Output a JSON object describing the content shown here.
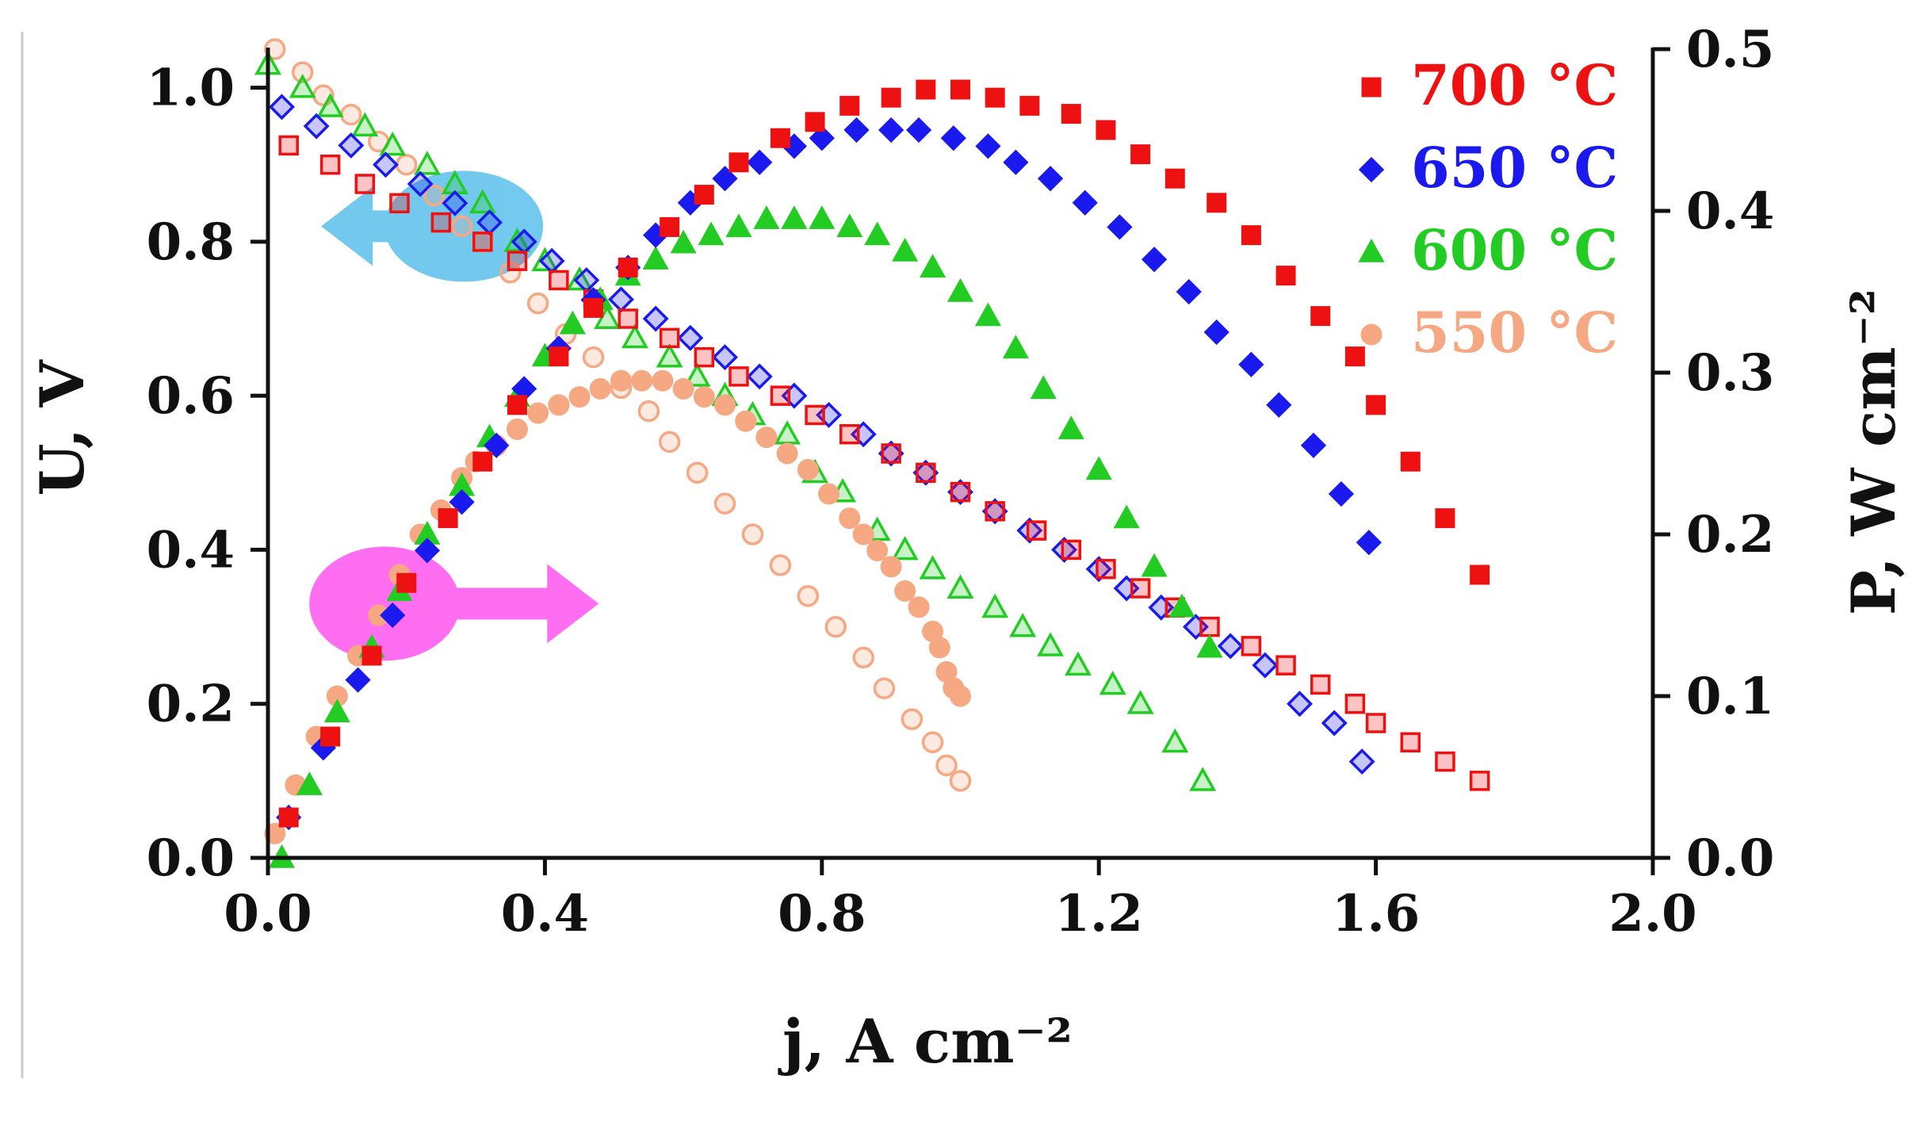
{
  "chart_data": {
    "type": "scatter",
    "title": "",
    "xlabel": "j, A cm⁻²",
    "ylabel_left": "U, V",
    "ylabel_right": "P, W cm⁻²",
    "xlim": [
      0,
      2.0
    ],
    "ylim_left": [
      0,
      1.05
    ],
    "ylim_right": [
      0,
      0.5
    ],
    "x_ticks": [
      "0.0",
      "0.4",
      "0.8",
      "1.2",
      "1.6",
      "2.0"
    ],
    "x_tick_values": [
      0,
      0.4,
      0.8,
      1.2,
      1.6,
      2.0
    ],
    "y_left_ticks": [
      "0.0",
      "0.2",
      "0.4",
      "0.6",
      "0.8",
      "1.0"
    ],
    "y_left_tick_values": [
      0,
      0.2,
      0.4,
      0.6,
      0.8,
      1.0
    ],
    "y_right_ticks": [
      "0.0",
      "0.1",
      "0.2",
      "0.3",
      "0.4",
      "0.5"
    ],
    "y_right_tick_values": [
      0,
      0.1,
      0.2,
      0.3,
      0.4,
      0.5
    ],
    "legend_position": "top-right",
    "annotations": [
      {
        "name": "voltage-axis-arrow",
        "points_to": "left axis",
        "color": "#5bc0eb",
        "x": 0.26,
        "y_left": 0.82
      },
      {
        "name": "power-axis-arrow",
        "points_to": "right axis",
        "color": "#ff55ee",
        "x": 0.18,
        "y_left": 0.33
      }
    ],
    "series": [
      {
        "name": "700 °C",
        "label": "700 °C",
        "color": "#ee1111",
        "marker": "square",
        "voltage": {
          "x": [
            0.03,
            0.09,
            0.14,
            0.19,
            0.25,
            0.31,
            0.36,
            0.42,
            0.47,
            0.52,
            0.58,
            0.63,
            0.68,
            0.74,
            0.79,
            0.84,
            0.9,
            0.95,
            1.0,
            1.05,
            1.11,
            1.16,
            1.21,
            1.26,
            1.31,
            1.36,
            1.42,
            1.47,
            1.52,
            1.57,
            1.6,
            1.65,
            1.7,
            1.75
          ],
          "y": [
            0.925,
            0.9,
            0.875,
            0.85,
            0.825,
            0.8,
            0.775,
            0.75,
            0.725,
            0.7,
            0.675,
            0.65,
            0.625,
            0.6,
            0.575,
            0.55,
            0.525,
            0.5,
            0.475,
            0.45,
            0.425,
            0.4,
            0.375,
            0.35,
            0.325,
            0.3,
            0.275,
            0.25,
            0.225,
            0.2,
            0.175,
            0.15,
            0.125,
            0.1
          ]
        },
        "power": {
          "x": [
            0.03,
            0.09,
            0.15,
            0.2,
            0.26,
            0.31,
            0.36,
            0.42,
            0.47,
            0.52,
            0.58,
            0.63,
            0.68,
            0.74,
            0.79,
            0.84,
            0.9,
            0.95,
            1.0,
            1.05,
            1.1,
            1.16,
            1.21,
            1.26,
            1.31,
            1.37,
            1.42,
            1.47,
            1.52,
            1.57,
            1.6,
            1.65,
            1.7,
            1.75
          ],
          "y": [
            0.025,
            0.075,
            0.125,
            0.17,
            0.21,
            0.245,
            0.28,
            0.31,
            0.34,
            0.365,
            0.39,
            0.41,
            0.43,
            0.445,
            0.455,
            0.465,
            0.47,
            0.475,
            0.475,
            0.47,
            0.465,
            0.46,
            0.45,
            0.435,
            0.42,
            0.405,
            0.385,
            0.36,
            0.335,
            0.31,
            0.28,
            0.245,
            0.21,
            0.175
          ]
        }
      },
      {
        "name": "650 °C",
        "label": "650 °C",
        "color": "#1a1aee",
        "marker": "diamond",
        "voltage": {
          "x": [
            0.02,
            0.07,
            0.12,
            0.17,
            0.22,
            0.27,
            0.32,
            0.37,
            0.41,
            0.46,
            0.51,
            0.56,
            0.61,
            0.66,
            0.71,
            0.76,
            0.81,
            0.86,
            0.9,
            0.95,
            1.0,
            1.05,
            1.1,
            1.15,
            1.2,
            1.24,
            1.29,
            1.34,
            1.39,
            1.44,
            1.49,
            1.54,
            1.58
          ],
          "y": [
            0.975,
            0.95,
            0.925,
            0.9,
            0.875,
            0.85,
            0.825,
            0.8,
            0.775,
            0.75,
            0.725,
            0.7,
            0.675,
            0.65,
            0.625,
            0.6,
            0.575,
            0.55,
            0.525,
            0.5,
            0.475,
            0.45,
            0.425,
            0.4,
            0.375,
            0.35,
            0.325,
            0.3,
            0.275,
            0.25,
            0.2,
            0.175,
            0.125
          ]
        },
        "power": {
          "x": [
            0.03,
            0.08,
            0.13,
            0.18,
            0.23,
            0.28,
            0.33,
            0.37,
            0.42,
            0.47,
            0.52,
            0.56,
            0.61,
            0.66,
            0.71,
            0.76,
            0.8,
            0.85,
            0.9,
            0.94,
            0.99,
            1.04,
            1.08,
            1.13,
            1.18,
            1.23,
            1.28,
            1.33,
            1.37,
            1.42,
            1.46,
            1.51,
            1.55,
            1.59
          ],
          "y": [
            0.025,
            0.068,
            0.11,
            0.15,
            0.19,
            0.22,
            0.255,
            0.29,
            0.315,
            0.345,
            0.365,
            0.385,
            0.405,
            0.42,
            0.43,
            0.44,
            0.445,
            0.45,
            0.45,
            0.45,
            0.445,
            0.44,
            0.43,
            0.42,
            0.405,
            0.39,
            0.37,
            0.35,
            0.325,
            0.305,
            0.28,
            0.255,
            0.225,
            0.195
          ]
        }
      },
      {
        "name": "600 °C",
        "label": "600 °C",
        "color": "#22cc22",
        "marker": "triangle",
        "voltage": {
          "x": [
            0.0,
            0.05,
            0.09,
            0.14,
            0.18,
            0.23,
            0.27,
            0.31,
            0.36,
            0.4,
            0.45,
            0.49,
            0.53,
            0.58,
            0.62,
            0.66,
            0.7,
            0.75,
            0.79,
            0.83,
            0.88,
            0.92,
            0.96,
            1.0,
            1.05,
            1.09,
            1.13,
            1.17,
            1.22,
            1.26,
            1.31,
            1.35
          ],
          "y": [
            1.03,
            1.0,
            0.975,
            0.95,
            0.925,
            0.9,
            0.875,
            0.85,
            0.8,
            0.775,
            0.75,
            0.7,
            0.675,
            0.65,
            0.625,
            0.6,
            0.575,
            0.55,
            0.5,
            0.475,
            0.425,
            0.4,
            0.375,
            0.35,
            0.325,
            0.3,
            0.275,
            0.25,
            0.225,
            0.2,
            0.15,
            0.1
          ]
        },
        "power": {
          "x": [
            0.02,
            0.06,
            0.1,
            0.15,
            0.19,
            0.23,
            0.28,
            0.32,
            0.36,
            0.4,
            0.44,
            0.48,
            0.52,
            0.56,
            0.6,
            0.64,
            0.68,
            0.72,
            0.76,
            0.8,
            0.84,
            0.88,
            0.92,
            0.96,
            1.0,
            1.04,
            1.08,
            1.12,
            1.16,
            1.2,
            1.24,
            1.28,
            1.32,
            1.36
          ],
          "y": [
            0.0,
            0.045,
            0.09,
            0.13,
            0.165,
            0.2,
            0.23,
            0.26,
            0.285,
            0.31,
            0.33,
            0.345,
            0.36,
            0.37,
            0.38,
            0.385,
            0.39,
            0.395,
            0.395,
            0.395,
            0.39,
            0.385,
            0.375,
            0.365,
            0.35,
            0.335,
            0.315,
            0.29,
            0.265,
            0.24,
            0.21,
            0.18,
            0.155,
            0.13
          ]
        }
      },
      {
        "name": "550 °C",
        "label": "550 °C",
        "color": "#f5a882",
        "marker": "circle",
        "voltage": {
          "x": [
            0.01,
            0.05,
            0.08,
            0.12,
            0.16,
            0.2,
            0.24,
            0.28,
            0.31,
            0.35,
            0.39,
            0.43,
            0.47,
            0.51,
            0.55,
            0.58,
            0.62,
            0.66,
            0.7,
            0.74,
            0.78,
            0.82,
            0.86,
            0.89,
            0.93,
            0.96,
            0.98,
            1.0
          ],
          "y": [
            1.05,
            1.02,
            0.99,
            0.965,
            0.93,
            0.9,
            0.86,
            0.82,
            0.8,
            0.76,
            0.72,
            0.68,
            0.65,
            0.61,
            0.58,
            0.54,
            0.5,
            0.46,
            0.42,
            0.38,
            0.34,
            0.3,
            0.26,
            0.22,
            0.18,
            0.15,
            0.12,
            0.1
          ]
        },
        "power": {
          "x": [
            0.01,
            0.04,
            0.07,
            0.1,
            0.13,
            0.16,
            0.19,
            0.22,
            0.25,
            0.28,
            0.3,
            0.33,
            0.36,
            0.39,
            0.42,
            0.45,
            0.48,
            0.51,
            0.54,
            0.57,
            0.6,
            0.63,
            0.66,
            0.69,
            0.72,
            0.75,
            0.78,
            0.81,
            0.84,
            0.86,
            0.88,
            0.9,
            0.92,
            0.94,
            0.96,
            0.97,
            0.98,
            0.99,
            1.0
          ],
          "y": [
            0.015,
            0.045,
            0.075,
            0.1,
            0.125,
            0.15,
            0.175,
            0.2,
            0.215,
            0.235,
            0.245,
            0.255,
            0.265,
            0.275,
            0.28,
            0.285,
            0.29,
            0.295,
            0.295,
            0.295,
            0.29,
            0.285,
            0.28,
            0.27,
            0.26,
            0.25,
            0.24,
            0.225,
            0.21,
            0.2,
            0.19,
            0.18,
            0.165,
            0.155,
            0.14,
            0.13,
            0.115,
            0.105,
            0.1
          ]
        }
      }
    ]
  }
}
